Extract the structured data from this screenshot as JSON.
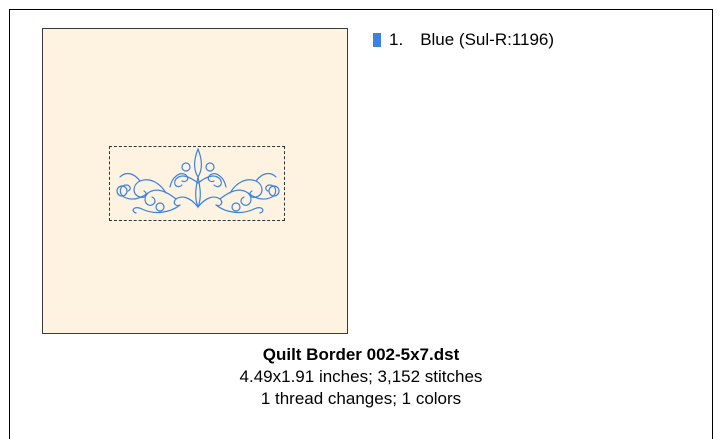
{
  "legend": {
    "items": [
      {
        "index": "1.",
        "name": "Blue (Sul-R:1196)",
        "color": "#3c82e0"
      }
    ]
  },
  "design": {
    "title": "Quilt Border  002-5x7.dst",
    "dimensions_line": "4.49x1.91 inches; 3,152 stitches",
    "colors_line": "1 thread changes; 1 colors",
    "hoop_color": "#fef2e1",
    "thread_color": "#3c82e0"
  }
}
